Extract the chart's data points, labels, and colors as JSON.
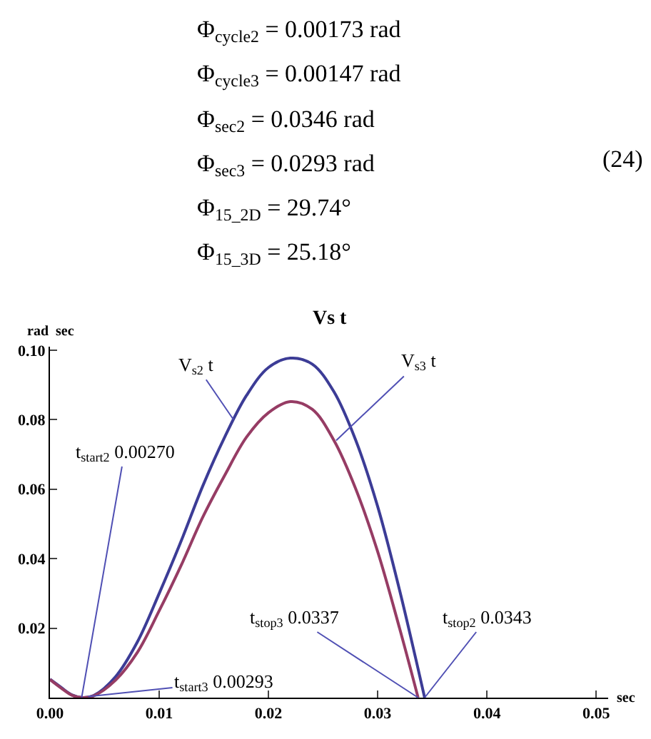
{
  "chart_data": {
    "type": "line",
    "title": "Vs t",
    "xlabel": "sec",
    "ylabel": "rad  sec",
    "xlim": [
      0,
      0.0511
    ],
    "ylim": [
      0,
      0.101
    ],
    "xticks": [
      {
        "value": 0,
        "label": "0.00"
      },
      {
        "value": 0.01,
        "label": "0.01"
      },
      {
        "value": 0.02,
        "label": "0.02"
      },
      {
        "value": 0.03,
        "label": "0.03"
      },
      {
        "value": 0.04,
        "label": "0.04"
      },
      {
        "value": 0.05,
        "label": "0.05"
      }
    ],
    "yticks": [
      0.02,
      0.04,
      0.06,
      0.08,
      {
        "value": 0.1,
        "label": "0.10"
      }
    ],
    "legend": false,
    "marker": "none",
    "line_style": "solid",
    "series": [
      {
        "color": "#3c3c96",
        "x": [
          0,
          0.001,
          0.002,
          0.003,
          0.004,
          0.006,
          0.008,
          0.01,
          0.012,
          0.014,
          0.016,
          0.018,
          0.02,
          0.022,
          0.024,
          0.026,
          0.028,
          0.03,
          0.032,
          0.0335,
          0.0343
        ],
        "values": [
          0.0053,
          0.003,
          0.0008,
          0,
          0.0006,
          0.006,
          0.016,
          0.03,
          0.045,
          0.061,
          0.075,
          0.087,
          0.095,
          0.0977,
          0.096,
          0.088,
          0.074,
          0.055,
          0.031,
          0.011,
          0
        ]
      },
      {
        "color": "#963c64",
        "x": [
          0,
          0.001,
          0.002,
          0.003,
          0.004,
          0.006,
          0.008,
          0.01,
          0.012,
          0.014,
          0.016,
          0.018,
          0.02,
          0.022,
          0.024,
          0.026,
          0.028,
          0.03,
          0.032,
          0.0337
        ],
        "values": [
          0.0052,
          0.0028,
          0.0007,
          0,
          0.0005,
          0.005,
          0.013,
          0.025,
          0.038,
          0.052,
          0.064,
          0.075,
          0.082,
          0.0852,
          0.083,
          0.074,
          0.06,
          0.042,
          0.02,
          0
        ]
      }
    ],
    "annotations": [
      "Φ$_{cycle2}$ = 0.00173 rad",
      "Φ$_{cycle3}$ = 0.00147 rad",
      "Φ$_{sec2}$ = 0.0346 rad",
      "Φ$_{sec3}$ = 0.0293 rad",
      "Φ$_{15_2D}$ = 29.74°",
      "Φ$_{15_3D}$ = 25.18°",
      "(24)",
      {
        "text": "V$_{s2}$ t",
        "x": 0.0168,
        "y": 0.08
      },
      {
        "text": "V$_{s3}$ t",
        "x": 0.0262,
        "y": 0.074
      },
      {
        "text": "t$_{start2}$ 0.00270",
        "x": 0.0029,
        "y": 0
      },
      {
        "text": "t$_{start3}$ 0.00293",
        "x": 0.0035,
        "y": 0.0003
      },
      {
        "text": "t$_{stop3}$ 0.0337",
        "x": 0.0337,
        "y": 0
      },
      {
        "text": "t$_{stop2}$ 0.0343",
        "x": 0.0343,
        "y": 0
      }
    ]
  }
}
